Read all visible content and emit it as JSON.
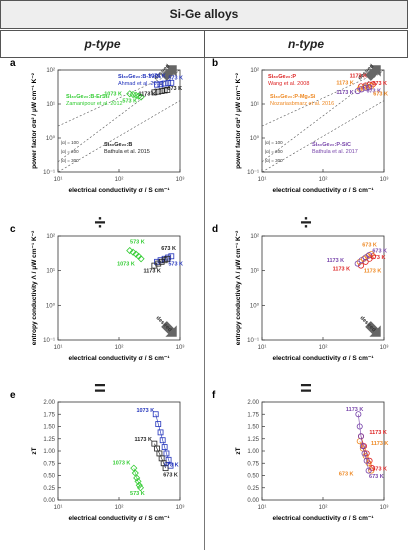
{
  "title": "Si-Ge alloys",
  "columns": [
    "p-type",
    "n-type"
  ],
  "operators": [
    "÷",
    "÷",
    "=",
    "="
  ],
  "colors": {
    "blue": "#2233bb",
    "green": "#33cc33",
    "black": "#222222",
    "red": "#dd2222",
    "orange": "#ee8822",
    "purple": "#7744aa"
  },
  "chart_data": [
    {
      "panel": "a",
      "type": "scatter",
      "xlabel": "electrical conductivity σ / S cm⁻¹",
      "ylabel": "power factor σα² / μW cm⁻¹ K⁻²",
      "xscale": "log",
      "yscale": "log",
      "xlim": [
        10,
        1000
      ],
      "ylim": [
        0.1,
        100
      ],
      "xticks": [
        "10¹",
        "10²",
        "10³"
      ],
      "yticks": [
        "10⁻¹",
        "10⁰",
        "10¹",
        "10²"
      ],
      "iso_lines": [
        {
          "label": "|α| = 300"
        },
        {
          "label": "|α| = 200"
        },
        {
          "label": "|α| = 100"
        }
      ],
      "arrow": "desired",
      "series": [
        {
          "name": "Si₈₀Ge₂₀:B-Y₂O₃",
          "ref": "Ahmad et al. 2016",
          "color": "blue",
          "marker": "square",
          "x": [
            420,
            480,
            560,
            640,
            720
          ],
          "y": [
            37,
            38,
            40,
            41,
            42
          ]
        },
        {
          "name": "Si₈₀Ge₂₀:B-ErSi₂",
          "ref": "Zamanipour et al. 2012",
          "color": "green",
          "marker": "diamond",
          "x": [
            150,
            170,
            190,
            210,
            230
          ],
          "y": [
            20,
            19,
            18,
            17,
            16
          ]
        },
        {
          "name": "Si₈₀Ge₂₀:B",
          "ref": "Bathula et al. 2015",
          "color": "black",
          "marker": "square",
          "x": [
            380,
            440,
            500,
            560,
            620
          ],
          "y": [
            22,
            23,
            24,
            25,
            26
          ]
        }
      ],
      "point_labels": [
        {
          "text": "1073 K",
          "color": "blue",
          "x": 420,
          "y": 60
        },
        {
          "text": "573 K",
          "color": "blue",
          "x": 850,
          "y": 52
        },
        {
          "text": "1073 K",
          "color": "green",
          "x": 80,
          "y": 18
        },
        {
          "text": "573 K",
          "color": "green",
          "x": 150,
          "y": 11
        },
        {
          "text": "1173 K",
          "color": "black",
          "x": 290,
          "y": 18
        },
        {
          "text": "673 K",
          "color": "black",
          "x": 820,
          "y": 26
        }
      ]
    },
    {
      "panel": "b",
      "type": "scatter",
      "xlabel": "electrical conductivity σ / S cm⁻¹",
      "ylabel": "power factor σα² / μW cm⁻¹ K⁻²",
      "xscale": "log",
      "yscale": "log",
      "xlim": [
        10,
        1000
      ],
      "ylim": [
        0.1,
        100
      ],
      "xticks": [
        "10¹",
        "10²",
        "10³"
      ],
      "yticks": [
        "10⁻¹",
        "10⁰",
        "10¹",
        "10²"
      ],
      "iso_lines": [
        {
          "label": "|α| = 300"
        },
        {
          "label": "|α| = 200"
        },
        {
          "label": "|α| = 100"
        }
      ],
      "arrow": "desired",
      "series": [
        {
          "name": "Si₈₀Ge₂₀:P",
          "ref": "Wang et al. 2008",
          "color": "red",
          "marker": "circle",
          "x": [
            420,
            500,
            580,
            660
          ],
          "y": [
            33,
            35,
            37,
            38
          ]
        },
        {
          "name": "Si₈₀Ge₂₀:P-Mg₂Si",
          "ref": "Nozariasbmarz et al. 2016",
          "color": "orange",
          "marker": "circle",
          "x": [
            400,
            470,
            540,
            620
          ],
          "y": [
            28,
            30,
            32,
            34
          ]
        },
        {
          "name": "Si₈₀Ge₂₀:P-SiC",
          "ref": "Bathula et al. 2017",
          "color": "purple",
          "marker": "circle",
          "x": [
            370,
            430,
            500,
            570
          ],
          "y": [
            24,
            27,
            30,
            31
          ]
        }
      ],
      "point_labels": [
        {
          "text": "1173 K",
          "color": "red",
          "x": 380,
          "y": 60
        },
        {
          "text": "1173 K",
          "color": "orange",
          "x": 230,
          "y": 38
        },
        {
          "text": "1173 K",
          "color": "purple",
          "x": 230,
          "y": 20
        },
        {
          "text": "673 K",
          "color": "red",
          "x": 850,
          "y": 36
        },
        {
          "text": "673 K",
          "color": "purple",
          "x": 680,
          "y": 22
        },
        {
          "text": "673 K",
          "color": "orange",
          "x": 880,
          "y": 18
        }
      ]
    },
    {
      "panel": "c",
      "type": "scatter",
      "xlabel": "electrical conductivity σ / S cm⁻¹",
      "ylabel": "entropy conductivity Λ / μW cm⁻¹ K⁻²",
      "xscale": "log",
      "yscale": "log",
      "xlim": [
        10,
        1000
      ],
      "ylim": [
        0.1,
        100
      ],
      "xticks": [
        "10¹",
        "10²",
        "10³"
      ],
      "yticks": [
        "10⁻¹",
        "10⁰",
        "10¹",
        "10²"
      ],
      "arrow": "desired",
      "series": [
        {
          "name": "Si₈₀Ge₂₀:B-Y₂O₃",
          "color": "blue",
          "marker": "square",
          "x": [
            420,
            480,
            560,
            640,
            720
          ],
          "y": [
            18,
            20,
            22,
            24,
            26
          ]
        },
        {
          "name": "Si₈₀Ge₂₀:B-ErSi₂",
          "color": "green",
          "marker": "diamond",
          "x": [
            150,
            170,
            190,
            210,
            230
          ],
          "y": [
            38,
            34,
            30,
            26,
            22
          ]
        },
        {
          "name": "Si₈₀Ge₂₀:B",
          "color": "black",
          "marker": "square",
          "x": [
            380,
            440,
            500,
            560,
            620
          ],
          "y": [
            14,
            16,
            18,
            20,
            22
          ]
        }
      ],
      "point_labels": [
        {
          "text": "573 K",
          "color": "green",
          "x": 200,
          "y": 60
        },
        {
          "text": "1073 K",
          "color": "green",
          "x": 130,
          "y": 14
        },
        {
          "text": "673 K",
          "color": "black",
          "x": 650,
          "y": 40
        },
        {
          "text": "1173 K",
          "color": "black",
          "x": 350,
          "y": 9
        },
        {
          "text": "573 K",
          "color": "blue",
          "x": 850,
          "y": 14
        }
      ]
    },
    {
      "panel": "d",
      "type": "scatter",
      "xlabel": "electrical conductivity σ / S cm⁻¹",
      "ylabel": "entropy conductivity Λ / μW cm⁻¹ K⁻²",
      "xscale": "log",
      "yscale": "log",
      "xlim": [
        10,
        1000
      ],
      "ylim": [
        0.1,
        100
      ],
      "xticks": [
        "10¹",
        "10²",
        "10³"
      ],
      "yticks": [
        "10⁻¹",
        "10⁰",
        "10¹",
        "10²"
      ],
      "arrow": "desired",
      "series": [
        {
          "name": "Si₈₀Ge₂₀:P",
          "color": "red",
          "marker": "circle",
          "x": [
            420,
            500,
            580,
            660
          ],
          "y": [
            14,
            18,
            22,
            26
          ]
        },
        {
          "name": "Si₈₀Ge₂₀:P-Mg₂Si",
          "color": "orange",
          "marker": "circle",
          "x": [
            400,
            470,
            540,
            620
          ],
          "y": [
            18,
            22,
            26,
            30
          ]
        },
        {
          "name": "Si₈₀Ge₂₀:P-SiC",
          "color": "purple",
          "marker": "circle",
          "x": [
            370,
            430,
            500,
            570
          ],
          "y": [
            16,
            20,
            24,
            28
          ]
        }
      ],
      "point_labels": [
        {
          "text": "673 K",
          "color": "orange",
          "x": 580,
          "y": 50
        },
        {
          "text": "673 K",
          "color": "purple",
          "x": 850,
          "y": 33
        },
        {
          "text": "673 K",
          "color": "red",
          "x": 800,
          "y": 22
        },
        {
          "text": "1173 K",
          "color": "purple",
          "x": 160,
          "y": 18
        },
        {
          "text": "1173 K",
          "color": "red",
          "x": 200,
          "y": 10
        },
        {
          "text": "1173 K",
          "color": "orange",
          "x": 650,
          "y": 9
        }
      ]
    },
    {
      "panel": "e",
      "type": "scatter",
      "xlabel": "electrical conductivity σ / S cm⁻¹",
      "ylabel": "zT",
      "xscale": "log",
      "yscale": "linear",
      "xlim": [
        10,
        1000
      ],
      "ylim": [
        0,
        2.0
      ],
      "xticks": [
        "10¹",
        "10²",
        "10³"
      ],
      "yticks": [
        "0.00",
        "0.25",
        "0.50",
        "0.75",
        "1.00",
        "1.25",
        "1.50",
        "1.75",
        "2.00"
      ],
      "series": [
        {
          "name": "Si₈₀Ge₂₀:B-Y₂O₃",
          "color": "blue",
          "marker": "square",
          "x": [
            400,
            440,
            480,
            520,
            560,
            600,
            650,
            700
          ],
          "y": [
            1.75,
            1.55,
            1.38,
            1.22,
            1.08,
            0.95,
            0.82,
            0.7
          ]
        },
        {
          "name": "Si₈₀Ge₂₀:B-ErSi₂",
          "color": "green",
          "marker": "diamond",
          "x": [
            175,
            185,
            195,
            205,
            215,
            225
          ],
          "y": [
            0.65,
            0.55,
            0.45,
            0.38,
            0.3,
            0.25
          ]
        },
        {
          "name": "Si₈₀Ge₂₀:B",
          "color": "black",
          "marker": "square",
          "x": [
            380,
            420,
            460,
            500,
            540,
            580
          ],
          "y": [
            1.15,
            1.05,
            0.95,
            0.85,
            0.75,
            0.65
          ]
        }
      ],
      "point_labels": [
        {
          "text": "1073 K",
          "color": "blue",
          "x": 270,
          "y": 1.8
        },
        {
          "text": "1173 K",
          "color": "black",
          "x": 250,
          "y": 1.2
        },
        {
          "text": "573 K",
          "color": "blue",
          "x": 720,
          "y": 0.68
        },
        {
          "text": "673 K",
          "color": "black",
          "x": 700,
          "y": 0.48
        },
        {
          "text": "1073 K",
          "color": "green",
          "x": 110,
          "y": 0.72
        },
        {
          "text": "573 K",
          "color": "green",
          "x": 200,
          "y": 0.1
        }
      ]
    },
    {
      "panel": "f",
      "type": "scatter",
      "xlabel": "electrical conductivity σ / S cm⁻¹",
      "ylabel": "zT",
      "xscale": "log",
      "yscale": "linear",
      "xlim": [
        10,
        1000
      ],
      "ylim": [
        0,
        2.0
      ],
      "xticks": [
        "10¹",
        "10²",
        "10³"
      ],
      "yticks": [
        "0.00",
        "0.25",
        "0.50",
        "0.75",
        "1.00",
        "1.25",
        "1.50",
        "1.75",
        "2.00"
      ],
      "series": [
        {
          "name": "Si₈₀Ge₂₀:P",
          "color": "red",
          "marker": "circle",
          "x": [
            420,
            470,
            520,
            580,
            640
          ],
          "y": [
            1.3,
            1.1,
            0.95,
            0.8,
            0.65
          ]
        },
        {
          "name": "Si₈₀Ge₂₀:P-Mg₂Si",
          "color": "orange",
          "marker": "circle",
          "x": [
            400,
            450,
            500,
            560,
            620
          ],
          "y": [
            1.2,
            1.05,
            0.9,
            0.75,
            0.6
          ]
        },
        {
          "name": "Si₈₀Ge₂₀:P-SiC",
          "color": "purple",
          "marker": "circle",
          "x": [
            380,
            400,
            420,
            450,
            480,
            520,
            560
          ],
          "y": [
            1.75,
            1.5,
            1.3,
            1.1,
            0.95,
            0.8,
            0.6
          ]
        }
      ],
      "point_labels": [
        {
          "text": "1173 K",
          "color": "purple",
          "x": 330,
          "y": 1.82
        },
        {
          "text": "1173 K",
          "color": "red",
          "x": 800,
          "y": 1.35
        },
        {
          "text": "1173 K",
          "color": "orange",
          "x": 850,
          "y": 1.12
        },
        {
          "text": "673 K",
          "color": "red",
          "x": 850,
          "y": 0.6
        },
        {
          "text": "673 K",
          "color": "orange",
          "x": 240,
          "y": 0.5
        },
        {
          "text": "673 K",
          "color": "purple",
          "x": 750,
          "y": 0.45
        }
      ]
    }
  ]
}
